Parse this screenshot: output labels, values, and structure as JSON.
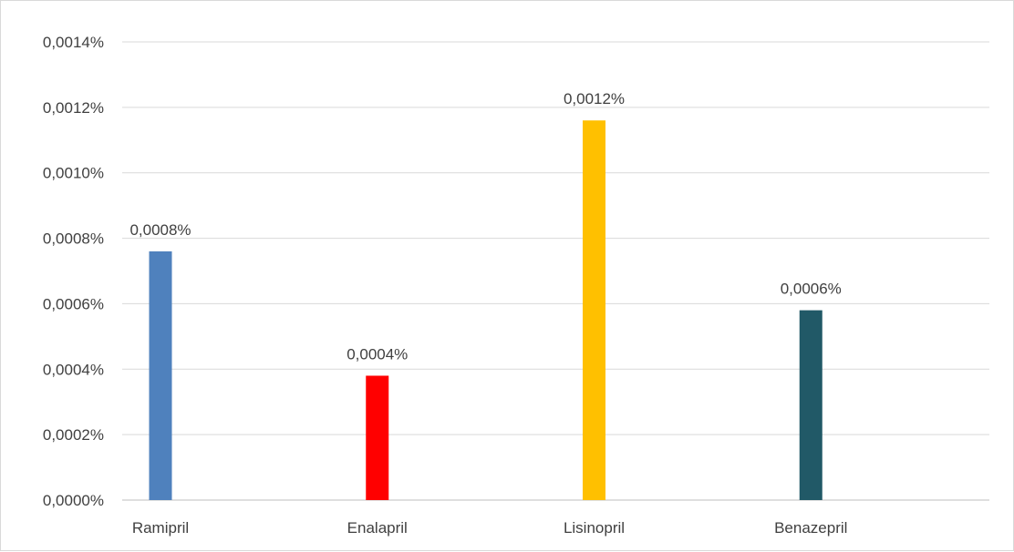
{
  "chart_data": {
    "type": "bar",
    "title": "",
    "xlabel": "",
    "ylabel": "",
    "categories": [
      "Ramipril",
      "Enalapril",
      "Lisinopril",
      "Benazepril"
    ],
    "values": [
      0.00076,
      0.00038,
      0.00116,
      0.00058
    ],
    "data_labels": [
      "0,0008%",
      "0,0004%",
      "0,0012%",
      "0,0006%"
    ],
    "colors": [
      "#4f81bd",
      "#ff0000",
      "#ffc000",
      "#215967"
    ],
    "ylim": [
      0,
      0.0014
    ],
    "yticks": [
      0,
      0.0002,
      0.0004,
      0.0006,
      0.0008,
      0.001,
      0.0012,
      0.0014
    ],
    "ytick_labels": [
      "0,0000%",
      "0,0002%",
      "0,0004%",
      "0,0006%",
      "0,0008%",
      "0,0010%",
      "0,0012%",
      "0,0014%"
    ],
    "grid": true,
    "legend": "none"
  }
}
